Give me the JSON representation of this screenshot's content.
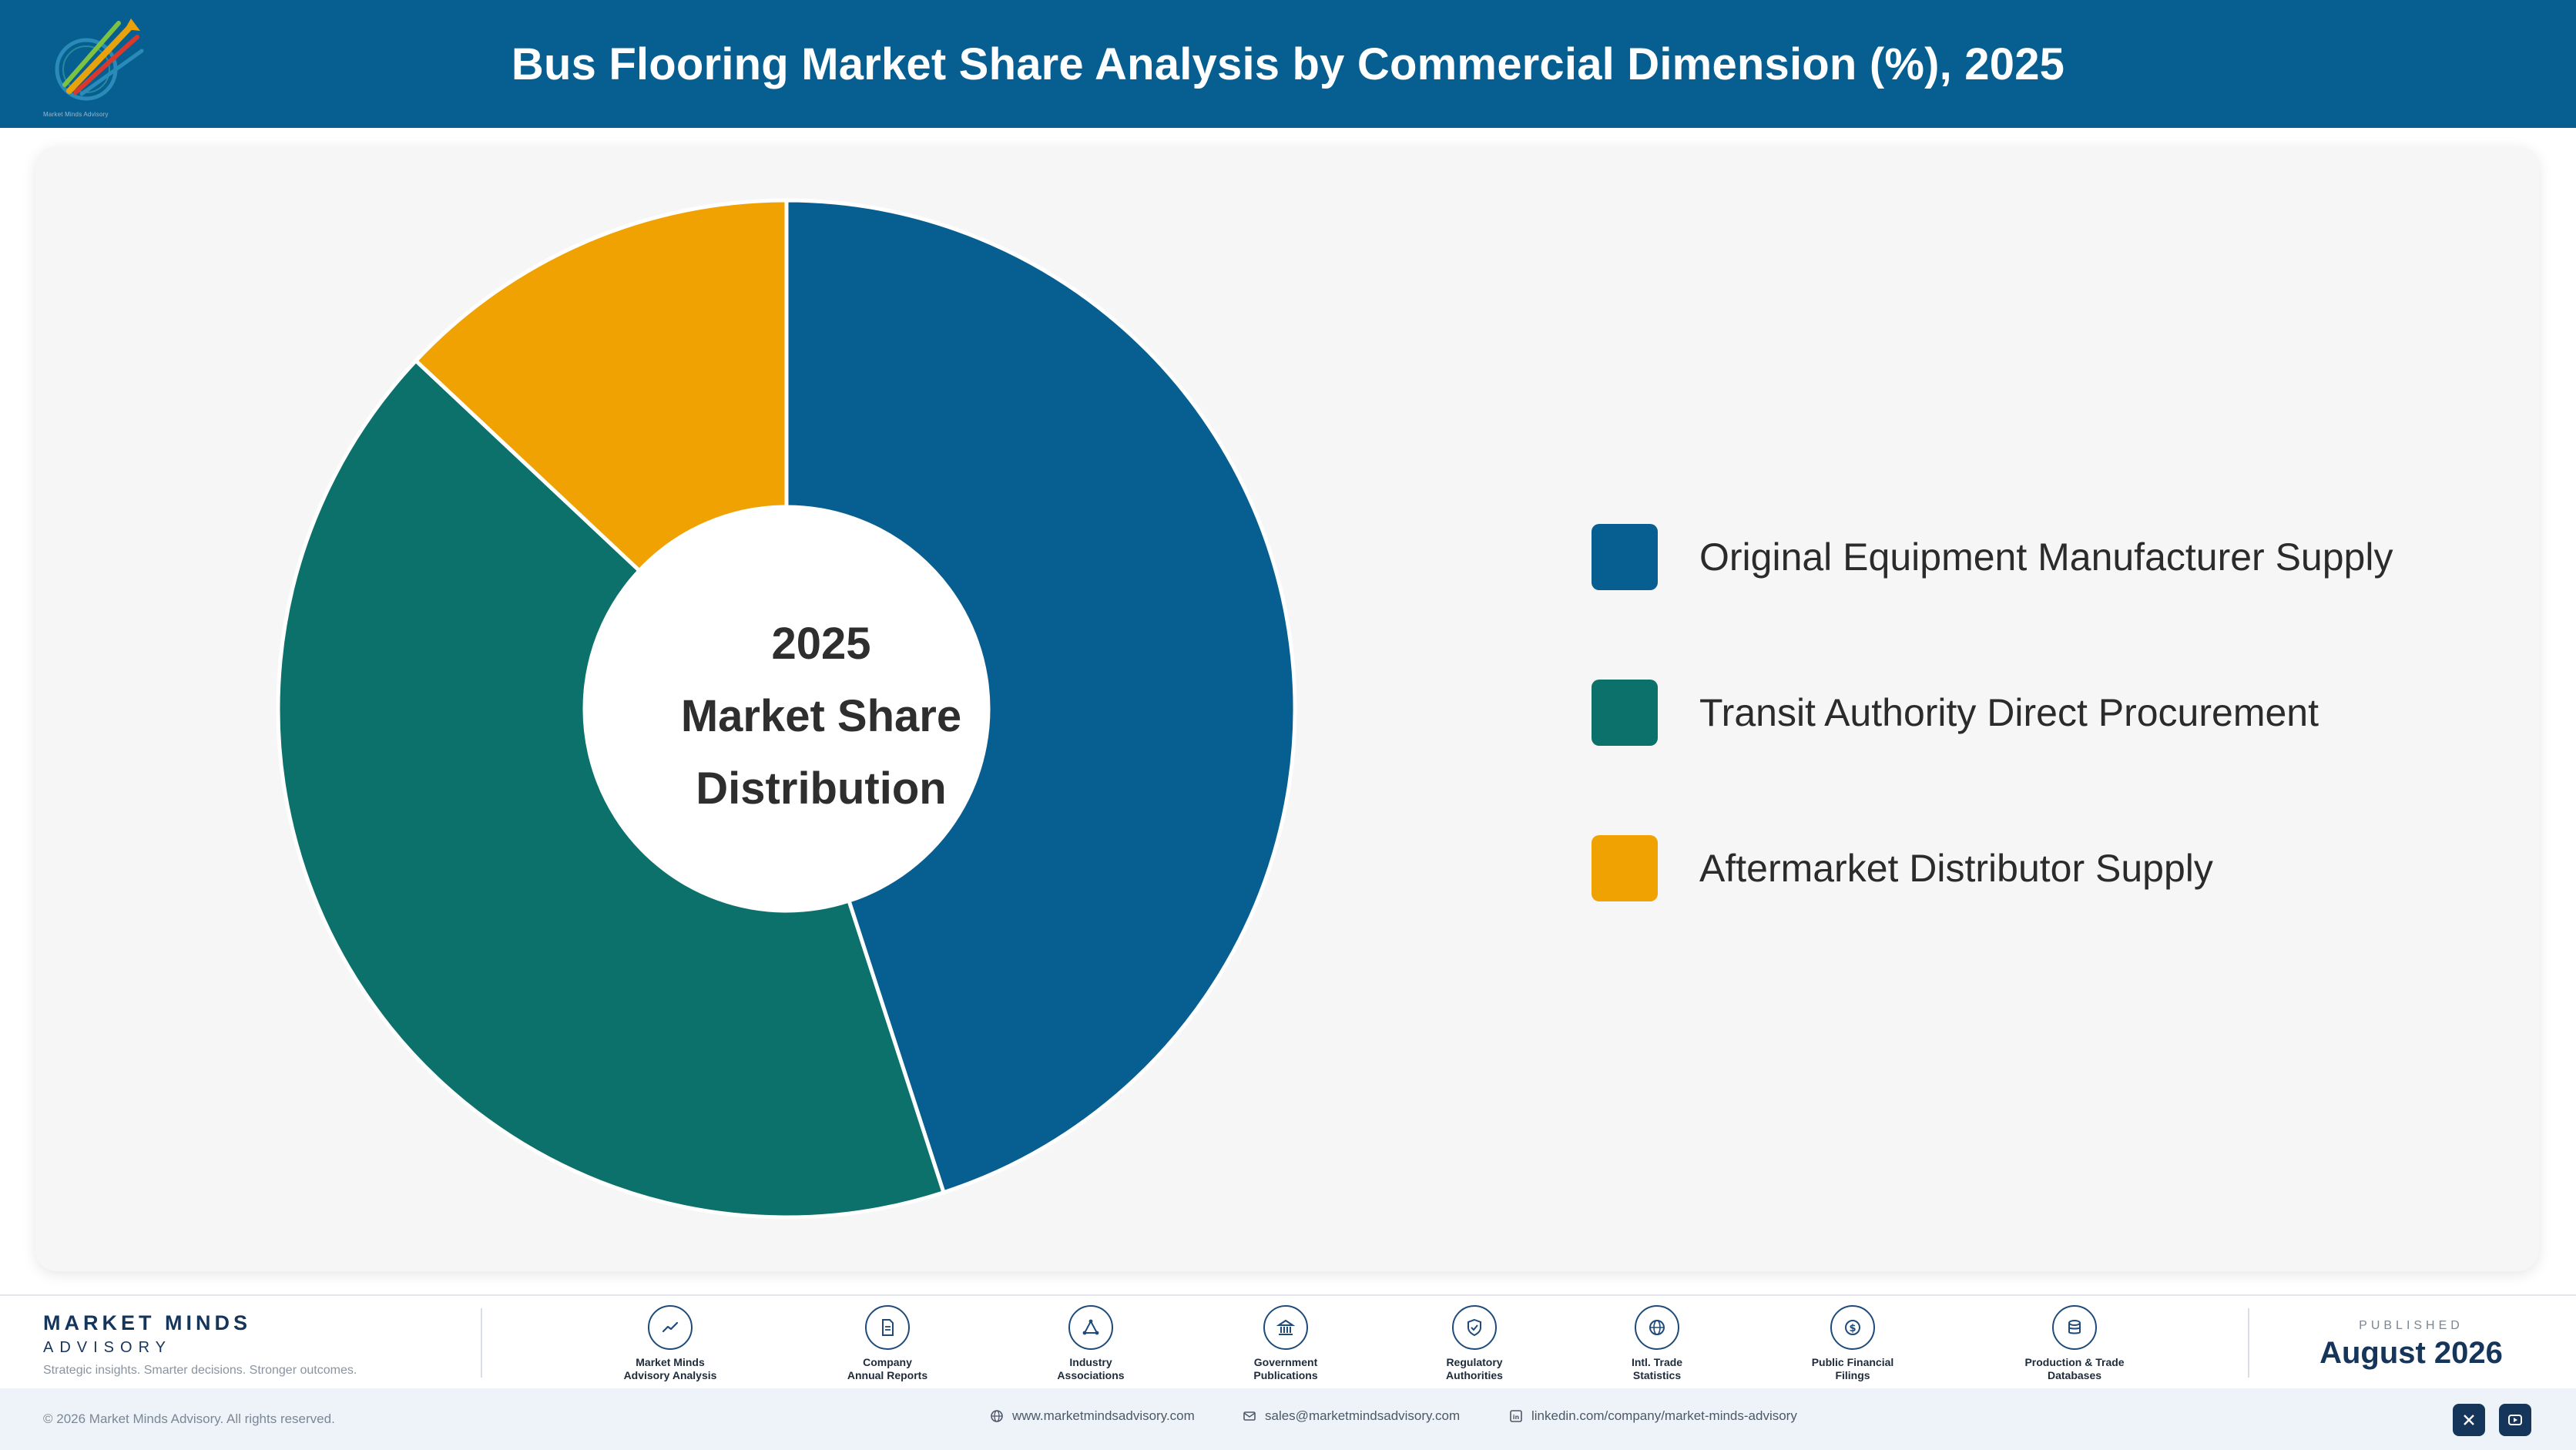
{
  "header": {
    "title": "Bus Flooring Market Share Analysis by Commercial Dimension (%), 2025",
    "logo_icon": "market-minds-logo-icon",
    "logo_caption": "Market Minds Advisory"
  },
  "chart_data": {
    "type": "pie",
    "style": "donut",
    "title": "Bus Flooring Market Share Analysis by Commercial Dimension (%), 2025",
    "center_label": [
      "2025",
      "Market Share",
      "Distribution"
    ],
    "legend_position": "right",
    "categories": [
      "Original Equipment Manufacturer Supply",
      "Transit Authority Direct Procurement",
      "Aftermarket Distributor Supply"
    ],
    "values": [
      45,
      42,
      13
    ],
    "colors": [
      "#075f91",
      "#0d716b",
      "#f0a202"
    ]
  },
  "footer": {
    "brand_name": "MARKET MINDS",
    "brand_sub": "ADVISORY",
    "tagline": "Strategic insights. Smarter decisions. Stronger outcomes.",
    "sources": [
      {
        "label": "Market Minds\nAdvisory Analysis",
        "icon": "trend-chart-icon"
      },
      {
        "label": "Company\nAnnual Reports",
        "icon": "document-icon"
      },
      {
        "label": "Industry\nAssociations",
        "icon": "network-icon"
      },
      {
        "label": "Government\nPublications",
        "icon": "government-building-icon"
      },
      {
        "label": "Regulatory\nAuthorities",
        "icon": "shield-check-icon"
      },
      {
        "label": "Intl. Trade\nStatistics",
        "icon": "globe-icon"
      },
      {
        "label": "Public Financial\nFilings",
        "icon": "dollar-coin-icon"
      },
      {
        "label": "Production & Trade\nDatabases",
        "icon": "database-icon"
      }
    ],
    "published_label": "PUBLISHED",
    "published_date": "August 2026"
  },
  "bottom_bar": {
    "copyright": "© 2026 Market Minds Advisory. All rights reserved.",
    "website": "www.marketmindsadvisory.com",
    "email": "sales@marketmindsadvisory.com",
    "linkedin": "linkedin.com/company/market-minds-advisory",
    "social_icons": [
      "x-icon",
      "youtube-icon"
    ]
  }
}
